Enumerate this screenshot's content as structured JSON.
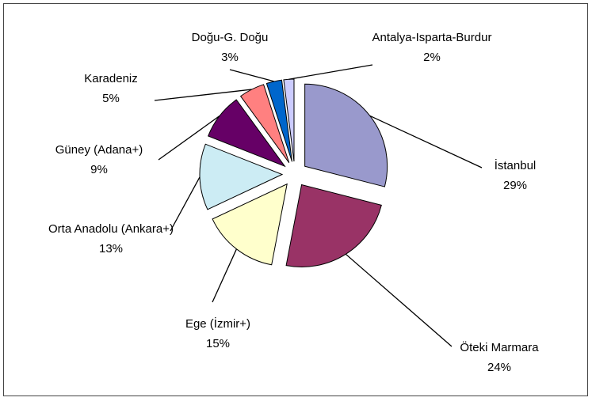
{
  "chart_data": {
    "type": "pie",
    "categories": [
      "İstanbul",
      "Öteki Marmara",
      "Ege (İzmir+)",
      "Orta Anadolu (Ankara+)",
      "Güney (Adana+)",
      "Karadeniz",
      "Doğu-G. Doğu",
      "Antalya-Isparta-Burdur"
    ],
    "values": [
      29,
      24,
      15,
      13,
      9,
      5,
      3,
      2
    ],
    "value_labels": [
      "29%",
      "24%",
      "15%",
      "13%",
      "9%",
      "5%",
      "3%",
      "2%"
    ],
    "colors": [
      "#9999cc",
      "#993366",
      "#ffffcc",
      "#ccecf4",
      "#660066",
      "#ff8080",
      "#0066cc",
      "#ccccff"
    ]
  }
}
